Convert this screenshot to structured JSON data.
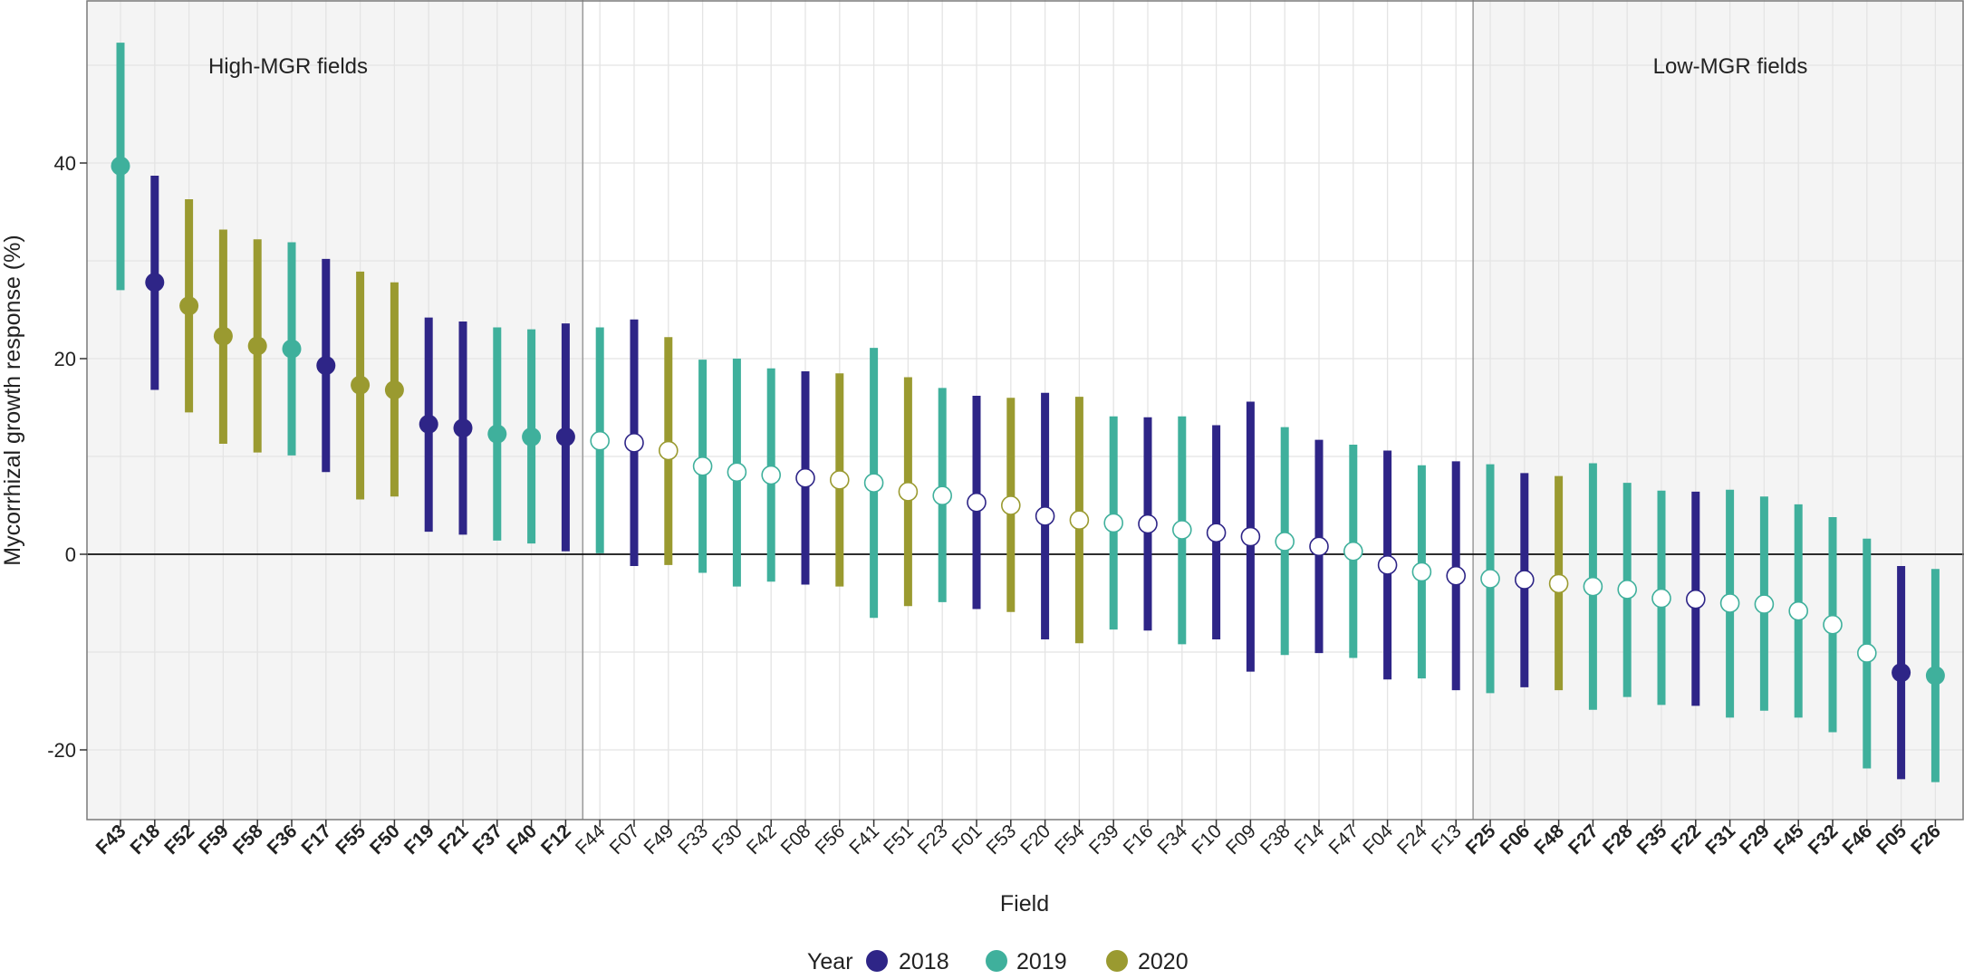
{
  "chart_data": {
    "type": "errorbar",
    "xlabel": "Field",
    "ylabel": "Mycorrhizal growth response (%)",
    "ylim": [
      -28,
      56
    ],
    "yticks": [
      -20,
      0,
      20,
      40
    ],
    "grid": true,
    "legend": {
      "title": "Year",
      "placement": "bottom-center",
      "entries": [
        {
          "label": "2018",
          "color": "#2e2587"
        },
        {
          "label": "2019",
          "color": "#3fb09c"
        },
        {
          "label": "2020",
          "color": "#9a9a30"
        }
      ]
    },
    "annotations": [
      {
        "text": "High-MGR fields"
      },
      {
        "text": "Low-MGR fields"
      }
    ],
    "highlighted_groups": [
      {
        "text": "High-MGR fields",
        "first": "F43",
        "last": "F12"
      },
      {
        "text": "Low-MGR fields",
        "first": "F25",
        "last": "F26"
      }
    ],
    "fields": [
      {
        "name": "F43",
        "year": "2019",
        "mean": 39.7,
        "lo": 27.0,
        "hi": 52.3,
        "bold": true,
        "filled": true
      },
      {
        "name": "F18",
        "year": "2018",
        "mean": 27.8,
        "lo": 16.8,
        "hi": 38.7,
        "bold": true,
        "filled": true
      },
      {
        "name": "F52",
        "year": "2020",
        "mean": 25.4,
        "lo": 14.5,
        "hi": 36.3,
        "bold": true,
        "filled": true
      },
      {
        "name": "F59",
        "year": "2020",
        "mean": 22.3,
        "lo": 11.3,
        "hi": 33.2,
        "bold": true,
        "filled": true
      },
      {
        "name": "F58",
        "year": "2020",
        "mean": 21.3,
        "lo": 10.4,
        "hi": 32.2,
        "bold": true,
        "filled": true
      },
      {
        "name": "F36",
        "year": "2019",
        "mean": 21.0,
        "lo": 10.1,
        "hi": 31.9,
        "bold": true,
        "filled": true
      },
      {
        "name": "F17",
        "year": "2018",
        "mean": 19.3,
        "lo": 8.4,
        "hi": 30.2,
        "bold": true,
        "filled": true
      },
      {
        "name": "F55",
        "year": "2020",
        "mean": 17.3,
        "lo": 5.6,
        "hi": 28.9,
        "bold": true,
        "filled": true
      },
      {
        "name": "F50",
        "year": "2020",
        "mean": 16.8,
        "lo": 5.9,
        "hi": 27.8,
        "bold": true,
        "filled": true
      },
      {
        "name": "F19",
        "year": "2018",
        "mean": 13.3,
        "lo": 2.3,
        "hi": 24.2,
        "bold": true,
        "filled": true
      },
      {
        "name": "F21",
        "year": "2018",
        "mean": 12.9,
        "lo": 2.0,
        "hi": 23.8,
        "bold": true,
        "filled": true
      },
      {
        "name": "F37",
        "year": "2019",
        "mean": 12.3,
        "lo": 1.4,
        "hi": 23.2,
        "bold": true,
        "filled": true
      },
      {
        "name": "F40",
        "year": "2019",
        "mean": 12.0,
        "lo": 1.1,
        "hi": 23.0,
        "bold": true,
        "filled": true
      },
      {
        "name": "F12",
        "year": "2018",
        "mean": 12.0,
        "lo": 0.3,
        "hi": 23.6,
        "bold": true,
        "filled": true
      },
      {
        "name": "F44",
        "year": "2019",
        "mean": 11.6,
        "lo": 0.1,
        "hi": 23.2,
        "bold": false,
        "filled": false
      },
      {
        "name": "F07",
        "year": "2018",
        "mean": 11.4,
        "lo": -1.2,
        "hi": 24.0,
        "bold": false,
        "filled": false
      },
      {
        "name": "F49",
        "year": "2020",
        "mean": 10.6,
        "lo": -1.1,
        "hi": 22.2,
        "bold": false,
        "filled": false
      },
      {
        "name": "F33",
        "year": "2019",
        "mean": 9.0,
        "lo": -1.9,
        "hi": 19.9,
        "bold": false,
        "filled": false
      },
      {
        "name": "F30",
        "year": "2019",
        "mean": 8.4,
        "lo": -3.3,
        "hi": 20.0,
        "bold": false,
        "filled": false
      },
      {
        "name": "F42",
        "year": "2019",
        "mean": 8.1,
        "lo": -2.8,
        "hi": 19.0,
        "bold": false,
        "filled": false
      },
      {
        "name": "F08",
        "year": "2018",
        "mean": 7.8,
        "lo": -3.1,
        "hi": 18.7,
        "bold": false,
        "filled": false
      },
      {
        "name": "F56",
        "year": "2020",
        "mean": 7.6,
        "lo": -3.3,
        "hi": 18.5,
        "bold": false,
        "filled": false
      },
      {
        "name": "F41",
        "year": "2019",
        "mean": 7.3,
        "lo": -6.5,
        "hi": 21.1,
        "bold": false,
        "filled": false
      },
      {
        "name": "F51",
        "year": "2020",
        "mean": 6.4,
        "lo": -5.3,
        "hi": 18.1,
        "bold": false,
        "filled": false
      },
      {
        "name": "F23",
        "year": "2019",
        "mean": 6.0,
        "lo": -4.9,
        "hi": 17.0,
        "bold": false,
        "filled": false
      },
      {
        "name": "F01",
        "year": "2018",
        "mean": 5.3,
        "lo": -5.6,
        "hi": 16.2,
        "bold": false,
        "filled": false
      },
      {
        "name": "F53",
        "year": "2020",
        "mean": 5.0,
        "lo": -5.9,
        "hi": 16.0,
        "bold": false,
        "filled": false
      },
      {
        "name": "F20",
        "year": "2018",
        "mean": 3.9,
        "lo": -8.7,
        "hi": 16.5,
        "bold": false,
        "filled": false
      },
      {
        "name": "F54",
        "year": "2020",
        "mean": 3.5,
        "lo": -9.1,
        "hi": 16.1,
        "bold": false,
        "filled": false
      },
      {
        "name": "F39",
        "year": "2019",
        "mean": 3.2,
        "lo": -7.7,
        "hi": 14.1,
        "bold": false,
        "filled": false
      },
      {
        "name": "F16",
        "year": "2018",
        "mean": 3.1,
        "lo": -7.8,
        "hi": 14.0,
        "bold": false,
        "filled": false
      },
      {
        "name": "F34",
        "year": "2019",
        "mean": 2.5,
        "lo": -9.2,
        "hi": 14.1,
        "bold": false,
        "filled": false
      },
      {
        "name": "F10",
        "year": "2018",
        "mean": 2.2,
        "lo": -8.7,
        "hi": 13.2,
        "bold": false,
        "filled": false
      },
      {
        "name": "F09",
        "year": "2018",
        "mean": 1.8,
        "lo": -12.0,
        "hi": 15.6,
        "bold": false,
        "filled": false
      },
      {
        "name": "F38",
        "year": "2019",
        "mean": 1.3,
        "lo": -10.3,
        "hi": 13.0,
        "bold": false,
        "filled": false
      },
      {
        "name": "F14",
        "year": "2018",
        "mean": 0.8,
        "lo": -10.1,
        "hi": 11.7,
        "bold": false,
        "filled": false
      },
      {
        "name": "F47",
        "year": "2019",
        "mean": 0.3,
        "lo": -10.6,
        "hi": 11.2,
        "bold": false,
        "filled": false
      },
      {
        "name": "F04",
        "year": "2018",
        "mean": -1.1,
        "lo": -12.8,
        "hi": 10.6,
        "bold": false,
        "filled": false
      },
      {
        "name": "F24",
        "year": "2019",
        "mean": -1.8,
        "lo": -12.7,
        "hi": 9.1,
        "bold": false,
        "filled": false
      },
      {
        "name": "F13",
        "year": "2018",
        "mean": -2.2,
        "lo": -13.9,
        "hi": 9.5,
        "bold": false,
        "filled": false
      },
      {
        "name": "F25",
        "year": "2019",
        "mean": -2.5,
        "lo": -14.2,
        "hi": 9.2,
        "bold": true,
        "filled": false
      },
      {
        "name": "F06",
        "year": "2018",
        "mean": -2.6,
        "lo": -13.6,
        "hi": 8.3,
        "bold": true,
        "filled": false
      },
      {
        "name": "F48",
        "year": "2020",
        "mean": -3.0,
        "lo": -13.9,
        "hi": 8.0,
        "bold": true,
        "filled": false
      },
      {
        "name": "F27",
        "year": "2019",
        "mean": -3.3,
        "lo": -15.9,
        "hi": 9.3,
        "bold": true,
        "filled": false
      },
      {
        "name": "F28",
        "year": "2019",
        "mean": -3.6,
        "lo": -14.6,
        "hi": 7.3,
        "bold": true,
        "filled": false
      },
      {
        "name": "F35",
        "year": "2019",
        "mean": -4.5,
        "lo": -15.4,
        "hi": 6.5,
        "bold": true,
        "filled": false
      },
      {
        "name": "F22",
        "year": "2018",
        "mean": -4.6,
        "lo": -15.5,
        "hi": 6.4,
        "bold": true,
        "filled": false
      },
      {
        "name": "F31",
        "year": "2019",
        "mean": -5.0,
        "lo": -16.7,
        "hi": 6.6,
        "bold": true,
        "filled": false
      },
      {
        "name": "F29",
        "year": "2019",
        "mean": -5.1,
        "lo": -16.0,
        "hi": 5.9,
        "bold": true,
        "filled": false
      },
      {
        "name": "F45",
        "year": "2019",
        "mean": -5.8,
        "lo": -16.7,
        "hi": 5.1,
        "bold": true,
        "filled": false
      },
      {
        "name": "F32",
        "year": "2019",
        "mean": -7.2,
        "lo": -18.2,
        "hi": 3.8,
        "bold": true,
        "filled": false
      },
      {
        "name": "F46",
        "year": "2019",
        "mean": -10.1,
        "lo": -21.9,
        "hi": 1.6,
        "bold": true,
        "filled": false
      },
      {
        "name": "F05",
        "year": "2018",
        "mean": -12.1,
        "lo": -23.0,
        "hi": -1.2,
        "bold": true,
        "filled": true
      },
      {
        "name": "F26",
        "year": "2019",
        "mean": -12.4,
        "lo": -23.3,
        "hi": -1.5,
        "bold": true,
        "filled": true
      }
    ]
  }
}
